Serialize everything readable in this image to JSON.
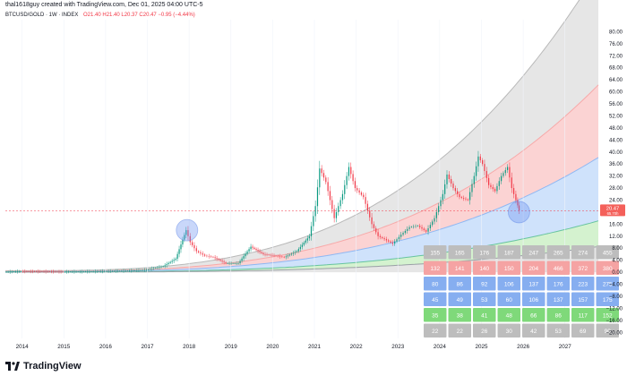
{
  "header": {
    "attribution": "thal1618guy created with TradingView.com, Dec 01, 2025 04:00 UTC-5",
    "symbol": "BTCUSD/GOLD · 1W · INDEX",
    "ohlc": "O21.40 H21.40 L20.37 C20.47 −0.95 (−4.44%)"
  },
  "footer": {
    "brand": "TradingView"
  },
  "colors": {
    "band_gray": "#e6e6e6",
    "band_red": "#fbd3d3",
    "band_blue": "#cfe2fb",
    "band_green": "#d4f2cf",
    "band_low_gray": "#e8e8e8",
    "candle_up": "#089981",
    "candle_down": "#f23645",
    "price_tag": "#f4605a"
  },
  "chart_data": {
    "type": "candlestick",
    "title": "BTCUSD/GOLD · 1W · INDEX",
    "xlabel": "",
    "ylabel": "",
    "x_ticks": [
      "2014",
      "2015",
      "2016",
      "2017",
      "2018",
      "2019",
      "2020",
      "2021",
      "2022",
      "2023",
      "2024",
      "2025",
      "2026",
      "2027"
    ],
    "y_ticks": [
      80,
      76,
      72,
      68,
      64,
      60,
      56,
      52,
      48,
      44,
      40,
      36,
      32,
      28,
      24,
      20,
      16,
      12,
      8,
      4,
      0,
      -4,
      -8,
      -12,
      -16,
      -20
    ],
    "ylim": [
      -22,
      84
    ],
    "xlim": [
      2013.6,
      2027.8
    ],
    "last_price": "20.47",
    "price_tag_sub": "65.70h",
    "series": [
      {
        "name": "BTCUSD/GOLD",
        "points": [
          [
            2013.6,
            0.08
          ],
          [
            2014.0,
            0.3
          ],
          [
            2014.5,
            0.25
          ],
          [
            2015.0,
            0.15
          ],
          [
            2015.5,
            0.2
          ],
          [
            2016.0,
            0.35
          ],
          [
            2016.5,
            0.5
          ],
          [
            2017.0,
            0.8
          ],
          [
            2017.4,
            2.0
          ],
          [
            2017.7,
            4.5
          ],
          [
            2017.95,
            14.0
          ],
          [
            2018.05,
            10.0
          ],
          [
            2018.2,
            7.0
          ],
          [
            2018.4,
            5.5
          ],
          [
            2018.6,
            5.0
          ],
          [
            2018.9,
            3.0
          ],
          [
            2019.2,
            3.0
          ],
          [
            2019.5,
            8.5
          ],
          [
            2019.8,
            6.0
          ],
          [
            2020.1,
            5.5
          ],
          [
            2020.3,
            5.0
          ],
          [
            2020.6,
            7.0
          ],
          [
            2020.9,
            12.0
          ],
          [
            2021.05,
            22.0
          ],
          [
            2021.15,
            34.5
          ],
          [
            2021.3,
            30.0
          ],
          [
            2021.5,
            18.0
          ],
          [
            2021.7,
            26.0
          ],
          [
            2021.85,
            35.0
          ],
          [
            2022.0,
            28.0
          ],
          [
            2022.2,
            25.0
          ],
          [
            2022.4,
            16.0
          ],
          [
            2022.55,
            12.0
          ],
          [
            2022.7,
            11.0
          ],
          [
            2022.9,
            9.5
          ],
          [
            2023.1,
            12.5
          ],
          [
            2023.3,
            15.0
          ],
          [
            2023.5,
            15.5
          ],
          [
            2023.7,
            13.5
          ],
          [
            2023.9,
            18.0
          ],
          [
            2024.1,
            26.0
          ],
          [
            2024.2,
            32.5
          ],
          [
            2024.35,
            28.0
          ],
          [
            2024.5,
            25.0
          ],
          [
            2024.7,
            24.0
          ],
          [
            2024.85,
            32.0
          ],
          [
            2024.95,
            38.5
          ],
          [
            2025.05,
            36.0
          ],
          [
            2025.2,
            29.0
          ],
          [
            2025.35,
            27.0
          ],
          [
            2025.5,
            32.0
          ],
          [
            2025.65,
            35.0
          ],
          [
            2025.75,
            28.0
          ],
          [
            2025.85,
            24.0
          ],
          [
            2025.92,
            20.47
          ]
        ]
      }
    ],
    "bands": [
      {
        "name": "outer-gray",
        "upper_coeff": 1.0,
        "lower_coeff": 0.0
      },
      {
        "name": "red",
        "upper_coeff": 0.62,
        "lower_coeff": 0.38
      },
      {
        "name": "blue",
        "upper_coeff": 0.38,
        "lower_coeff": 0.17
      },
      {
        "name": "green",
        "upper_coeff": 0.17,
        "lower_coeff": 0.085
      }
    ],
    "highlight_circles": [
      {
        "x": 2017.95,
        "y": 14.0
      },
      {
        "x": 2025.9,
        "y": 20.0
      }
    ],
    "table": {
      "rows": [
        {
          "color": "gray",
          "values": [
            "155",
            "165",
            "176",
            "187",
            "247",
            "265",
            "274",
            "455"
          ]
        },
        {
          "color": "red",
          "values": [
            "132",
            "141",
            "140",
            "150",
            "204",
            "466",
            "372",
            "380"
          ]
        },
        {
          "color": "blue",
          "values": [
            "80",
            "86",
            "92",
            "106",
            "137",
            "176",
            "223",
            "275"
          ]
        },
        {
          "color": "blue",
          "values": [
            "45",
            "49",
            "53",
            "60",
            "106",
            "137",
            "157",
            "175"
          ]
        },
        {
          "color": "green",
          "values": [
            "35",
            "38",
            "41",
            "48",
            "66",
            "86",
            "117",
            "152"
          ]
        },
        {
          "color": "gray",
          "values": [
            "22",
            "22",
            "26",
            "30",
            "42",
            "53",
            "69",
            "90"
          ]
        }
      ]
    }
  }
}
